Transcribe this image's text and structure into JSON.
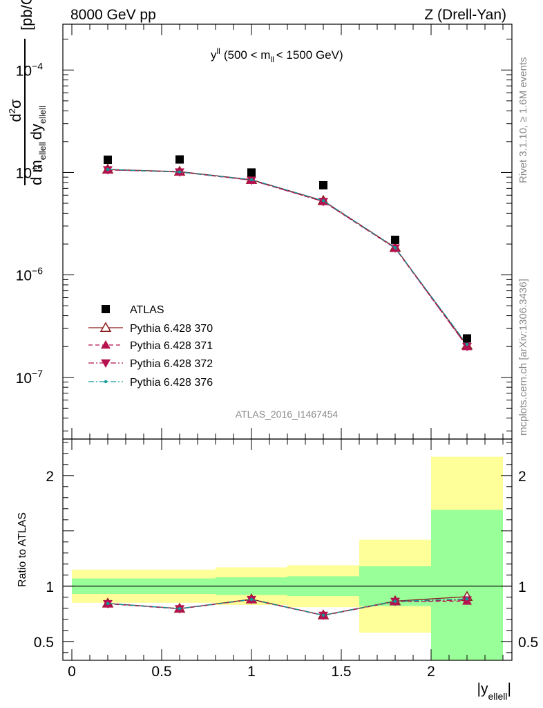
{
  "header": {
    "left": "8000 GeV pp",
    "right": "Z (Drell-Yan)"
  },
  "side_labels": {
    "rivet": "Rivet 3.1.10, ≥ 1.6M events",
    "mcplots": "mcplots.cern.ch [arXiv:1306.3436]"
  },
  "analysis_id": "ATLAS_2016_I1467454",
  "colors": {
    "data": "#000000",
    "p370": "#8b1a1a",
    "p371": "#b5124f",
    "p372": "#b5124f",
    "p376": "#0f9b9b",
    "band_inner": "#99ff99",
    "band_outer": "#ffff99"
  },
  "chart_data": [
    {
      "type": "scatter",
      "title": "y^{ll} (500 < m_{ll} < 1500 GeV)",
      "title_parts": {
        "main": "y",
        "sup": "ll",
        "pre": "(500 < m",
        "sub": "ll",
        "post": "< 1500 GeV)"
      },
      "ylabel": "d²σ / d m_ellell dy_ellell [pb/GeV]",
      "ylabel_parts": {
        "num": "d",
        "num_sup": "2",
        "num_sym": "σ",
        "den1": "d m",
        "den1_sub": "ellell",
        "den2": "dy",
        "den2_sub": "ellell",
        "unit": "[pb/GeV]"
      },
      "yscale": "log",
      "ylim": [
        2.5e-08,
        0.00028
      ],
      "xlim": [
        -0.05,
        2.45
      ],
      "ytick_labels": [
        {
          "value": 0.0001,
          "base": "10",
          "exp": "−4"
        },
        {
          "value": 1e-05,
          "base": "10",
          "exp": "−5"
        },
        {
          "value": 1e-06,
          "base": "10",
          "exp": "−6"
        },
        {
          "value": 1e-07,
          "base": "10",
          "exp": "−7"
        }
      ],
      "legend_position": "bottom-left",
      "x": [
        0.2,
        0.6,
        1.0,
        1.4,
        1.8,
        2.2
      ],
      "series": [
        {
          "name": "ATLAS",
          "marker": "square",
          "values": [
            1.33e-05,
            1.34e-05,
            1e-05,
            7.5e-06,
            2.2e-06,
            2.4e-07
          ]
        },
        {
          "name": "Pythia 6.428 370",
          "marker": "triangle-open",
          "line": "solid",
          "values": [
            1.07e-05,
            1.02e-05,
            8.5e-06,
            5.3e-06,
            1.85e-06,
            2.05e-07
          ]
        },
        {
          "name": "Pythia 6.428 371",
          "marker": "triangle-up",
          "line": "dashed",
          "values": [
            1.06e-05,
            1.01e-05,
            8.4e-06,
            5.2e-06,
            1.82e-06,
            2e-07
          ]
        },
        {
          "name": "Pythia 6.428 372",
          "marker": "triangle-down",
          "line": "dashdot",
          "values": [
            1.06e-05,
            1.01e-05,
            8.4e-06,
            5.2e-06,
            1.83e-06,
            2e-07
          ]
        },
        {
          "name": "Pythia 6.428 376",
          "marker": "dot",
          "line": "dashdot-teal",
          "values": [
            1.07e-05,
            1.01e-05,
            8.5e-06,
            5.3e-06,
            1.84e-06,
            2.1e-07
          ]
        }
      ]
    },
    {
      "type": "line",
      "ylabel": "Ratio to ATLAS",
      "xlabel": "|y_ellell|",
      "xlabel_parts": {
        "main": "|y",
        "sub": "ellell",
        "post": "|"
      },
      "xlim": [
        -0.05,
        2.45
      ],
      "ylim": [
        0.33,
        2.33
      ],
      "xtick_labels": [
        {
          "value": 0,
          "label": "0"
        },
        {
          "value": 0.5,
          "label": "0.5"
        },
        {
          "value": 1,
          "label": "1"
        },
        {
          "value": 1.5,
          "label": "1.5"
        },
        {
          "value": 2,
          "label": "2"
        }
      ],
      "ytick_labels": [
        {
          "value": 0.5,
          "label": "0.5"
        },
        {
          "value": 1,
          "label": "1"
        },
        {
          "value": 2,
          "label": "2"
        }
      ],
      "reference_line": 1,
      "bins": [
        [
          0.0,
          0.4
        ],
        [
          0.4,
          0.8
        ],
        [
          0.8,
          1.2
        ],
        [
          1.2,
          1.6
        ],
        [
          1.6,
          2.0
        ],
        [
          2.0,
          2.4
        ]
      ],
      "band_inner": {
        "low": [
          0.93,
          0.93,
          0.92,
          0.91,
          0.82,
          0.33
        ],
        "high": [
          1.07,
          1.07,
          1.08,
          1.09,
          1.18,
          1.69
        ]
      },
      "band_outer": {
        "low": [
          0.85,
          0.85,
          0.83,
          0.81,
          0.58,
          0.33
        ],
        "high": [
          1.15,
          1.15,
          1.17,
          1.19,
          1.42,
          2.17
        ]
      },
      "x": [
        0.2,
        0.6,
        1.0,
        1.4,
        1.8,
        2.2
      ],
      "series": [
        {
          "name": "Pythia 6.428 370",
          "values": [
            0.845,
            0.798,
            0.882,
            0.738,
            0.865,
            0.905
          ]
        },
        {
          "name": "Pythia 6.428 371",
          "values": [
            0.84,
            0.795,
            0.878,
            0.735,
            0.86,
            0.865
          ]
        },
        {
          "name": "Pythia 6.428 372",
          "values": [
            0.842,
            0.796,
            0.879,
            0.736,
            0.862,
            0.875
          ]
        },
        {
          "name": "Pythia 6.428 376",
          "values": [
            0.843,
            0.797,
            0.88,
            0.737,
            0.863,
            0.885
          ]
        }
      ]
    }
  ]
}
